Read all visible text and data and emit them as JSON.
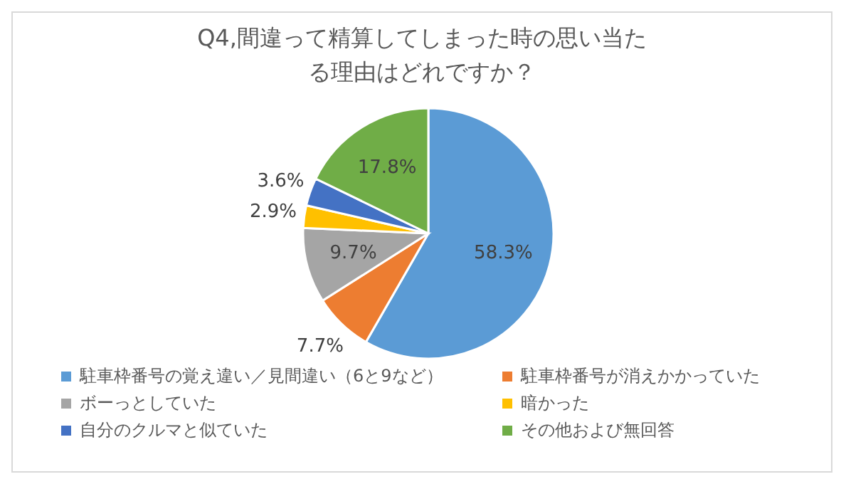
{
  "chart_data": {
    "type": "pie",
    "title": "Q4,間違って精算してしまった時の思い当たる理由はどれですか？",
    "categories": [
      "駐車枠番号の覚え違い／見間違い（6と9など）",
      "駐車枠番号が消えかかっていた",
      "ボーっとしていた",
      "暗かった",
      "自分のクルマと似ていた",
      "その他および無回答"
    ],
    "values": [
      58.3,
      7.7,
      9.7,
      2.9,
      3.6,
      17.8
    ],
    "value_labels": [
      "58.3%",
      "7.7%",
      "9.7%",
      "2.9%",
      "3.6%",
      "17.8%"
    ],
    "colors": [
      "#5b9bd5",
      "#ed7d31",
      "#a5a5a5",
      "#ffc000",
      "#4472c4",
      "#70ad47"
    ],
    "legend": "bottom"
  }
}
